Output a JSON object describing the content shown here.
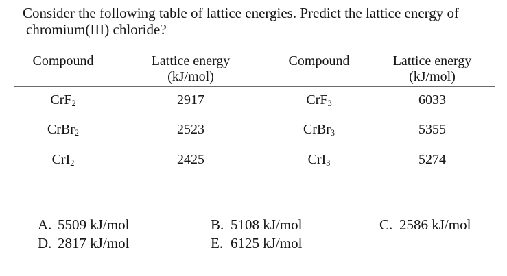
{
  "question": {
    "line1": "Consider the following table of lattice energies. Predict the lattice energy of",
    "line2": "chromium(III) chloride?"
  },
  "table": {
    "headers": [
      {
        "label": "Compound",
        "unit": ""
      },
      {
        "label": "Lattice energy",
        "unit": "(kJ/mol)"
      },
      {
        "label": "Compound",
        "unit": ""
      },
      {
        "label": "Lattice energy",
        "unit": "(kJ/mol)"
      }
    ],
    "rows": [
      [
        {
          "base": "CrF",
          "sub": "2"
        },
        "2917",
        {
          "base": "CrF",
          "sub": "3"
        },
        "6033"
      ],
      [
        {
          "base": "CrBr",
          "sub": "2"
        },
        "2523",
        {
          "base": "CrBr",
          "sub": "3"
        },
        "5355"
      ],
      [
        {
          "base": "CrI",
          "sub": "2"
        },
        "2425",
        {
          "base": "CrI",
          "sub": "3"
        },
        "5274"
      ]
    ]
  },
  "options": [
    {
      "letter": "A.",
      "value": "5509 kJ/mol"
    },
    {
      "letter": "B.",
      "value": "5108 kJ/mol"
    },
    {
      "letter": "C.",
      "value": "2586 kJ/mol"
    },
    {
      "letter": "D.",
      "value": "2817 kJ/mol"
    },
    {
      "letter": "E.",
      "value": "6125 kJ/mol"
    }
  ],
  "colors": {
    "background": "#ffffff",
    "text": "#161616",
    "table_rule": "#6a6a6a"
  }
}
